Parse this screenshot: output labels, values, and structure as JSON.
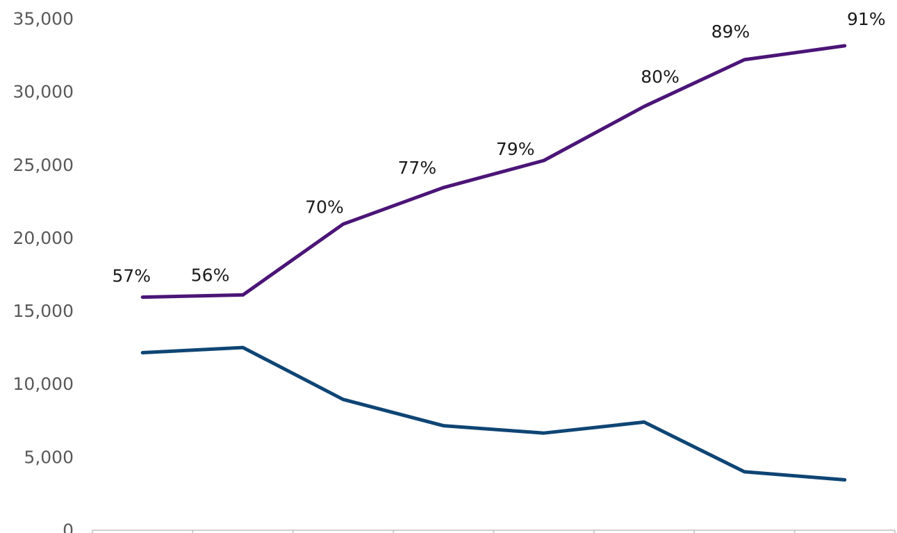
{
  "chart_data": {
    "type": "line",
    "title": "",
    "xlabel": "",
    "ylabel": "",
    "ylim": [
      0,
      35000
    ],
    "yticks": [
      0,
      5000,
      10000,
      15000,
      20000,
      25000,
      30000,
      35000
    ],
    "ytick_labels": [
      "0",
      "5,000",
      "10,000",
      "15,000",
      "20,000",
      "25,000",
      "30,000",
      "35,000"
    ],
    "x_count": 8,
    "grid": false,
    "legend": "none",
    "series": [
      {
        "color": "#4b1577",
        "values": [
          15950,
          16100,
          20950,
          23450,
          25300,
          29000,
          32200,
          33150
        ],
        "labels": [
          "57%",
          "56%",
          "70%",
          "77%",
          "79%",
          "80%",
          "89%",
          "91%"
        ]
      },
      {
        "color": "#0e4574",
        "values": [
          12150,
          12500,
          8950,
          7150,
          6650,
          7400,
          4000,
          3450
        ]
      }
    ]
  }
}
